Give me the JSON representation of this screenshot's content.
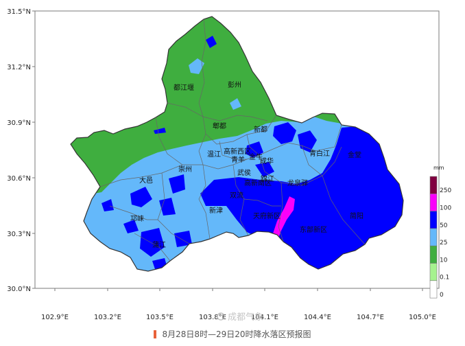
{
  "map": {
    "lat_ticks": [
      "31.5°N",
      "31.2°N",
      "30.9°N",
      "30.6°N",
      "30.3°N",
      "30.0°N"
    ],
    "lon_ticks": [
      "102.9°E",
      "103.2°E",
      "103.5°E",
      "103.8°E",
      "104.1°E",
      "104.4°E",
      "104.7°E",
      "105.0°E"
    ],
    "districts": [
      {
        "name": "彭州"
      },
      {
        "name": "都江堰"
      },
      {
        "name": "郫都"
      },
      {
        "name": "新都"
      },
      {
        "name": "温江"
      },
      {
        "name": "高新西区"
      },
      {
        "name": "青羊"
      },
      {
        "name": "金牛"
      },
      {
        "name": "成华"
      },
      {
        "name": "青白江"
      },
      {
        "name": "金堂"
      },
      {
        "name": "崇州"
      },
      {
        "name": "大邑"
      },
      {
        "name": "武侯"
      },
      {
        "name": "锦江"
      },
      {
        "name": "高新南区"
      },
      {
        "name": "龙泉驿"
      },
      {
        "name": "双流"
      },
      {
        "name": "新津"
      },
      {
        "name": "邛崃"
      },
      {
        "name": "天府新区"
      },
      {
        "name": "简阳"
      },
      {
        "name": "东部新区"
      },
      {
        "name": "蒲江"
      }
    ],
    "colors": {
      "frame": "#7a7a7a",
      "border": "#666666",
      "rain_0_01": "#ffffff",
      "rain_01_10": "#a6f28f",
      "rain_10_25": "#3fae3f",
      "rain_25_50": "#64b8fa",
      "rain_50_100": "#0000ff",
      "rain_100_250": "#fa00fa",
      "rain_250_plus": "#800040"
    }
  },
  "legend": {
    "unit": "mm",
    "labels": [
      "250",
      "100",
      "50",
      "25",
      "10",
      "0.1",
      "0"
    ],
    "colors": [
      "#800040",
      "#fa00fa",
      "#0000ff",
      "#64b8fa",
      "#3fae3f",
      "#a6f28f",
      "#ffffff"
    ]
  },
  "watermark": "成都气象",
  "caption": "8月28日8时—29日20时降水落区预报图"
}
